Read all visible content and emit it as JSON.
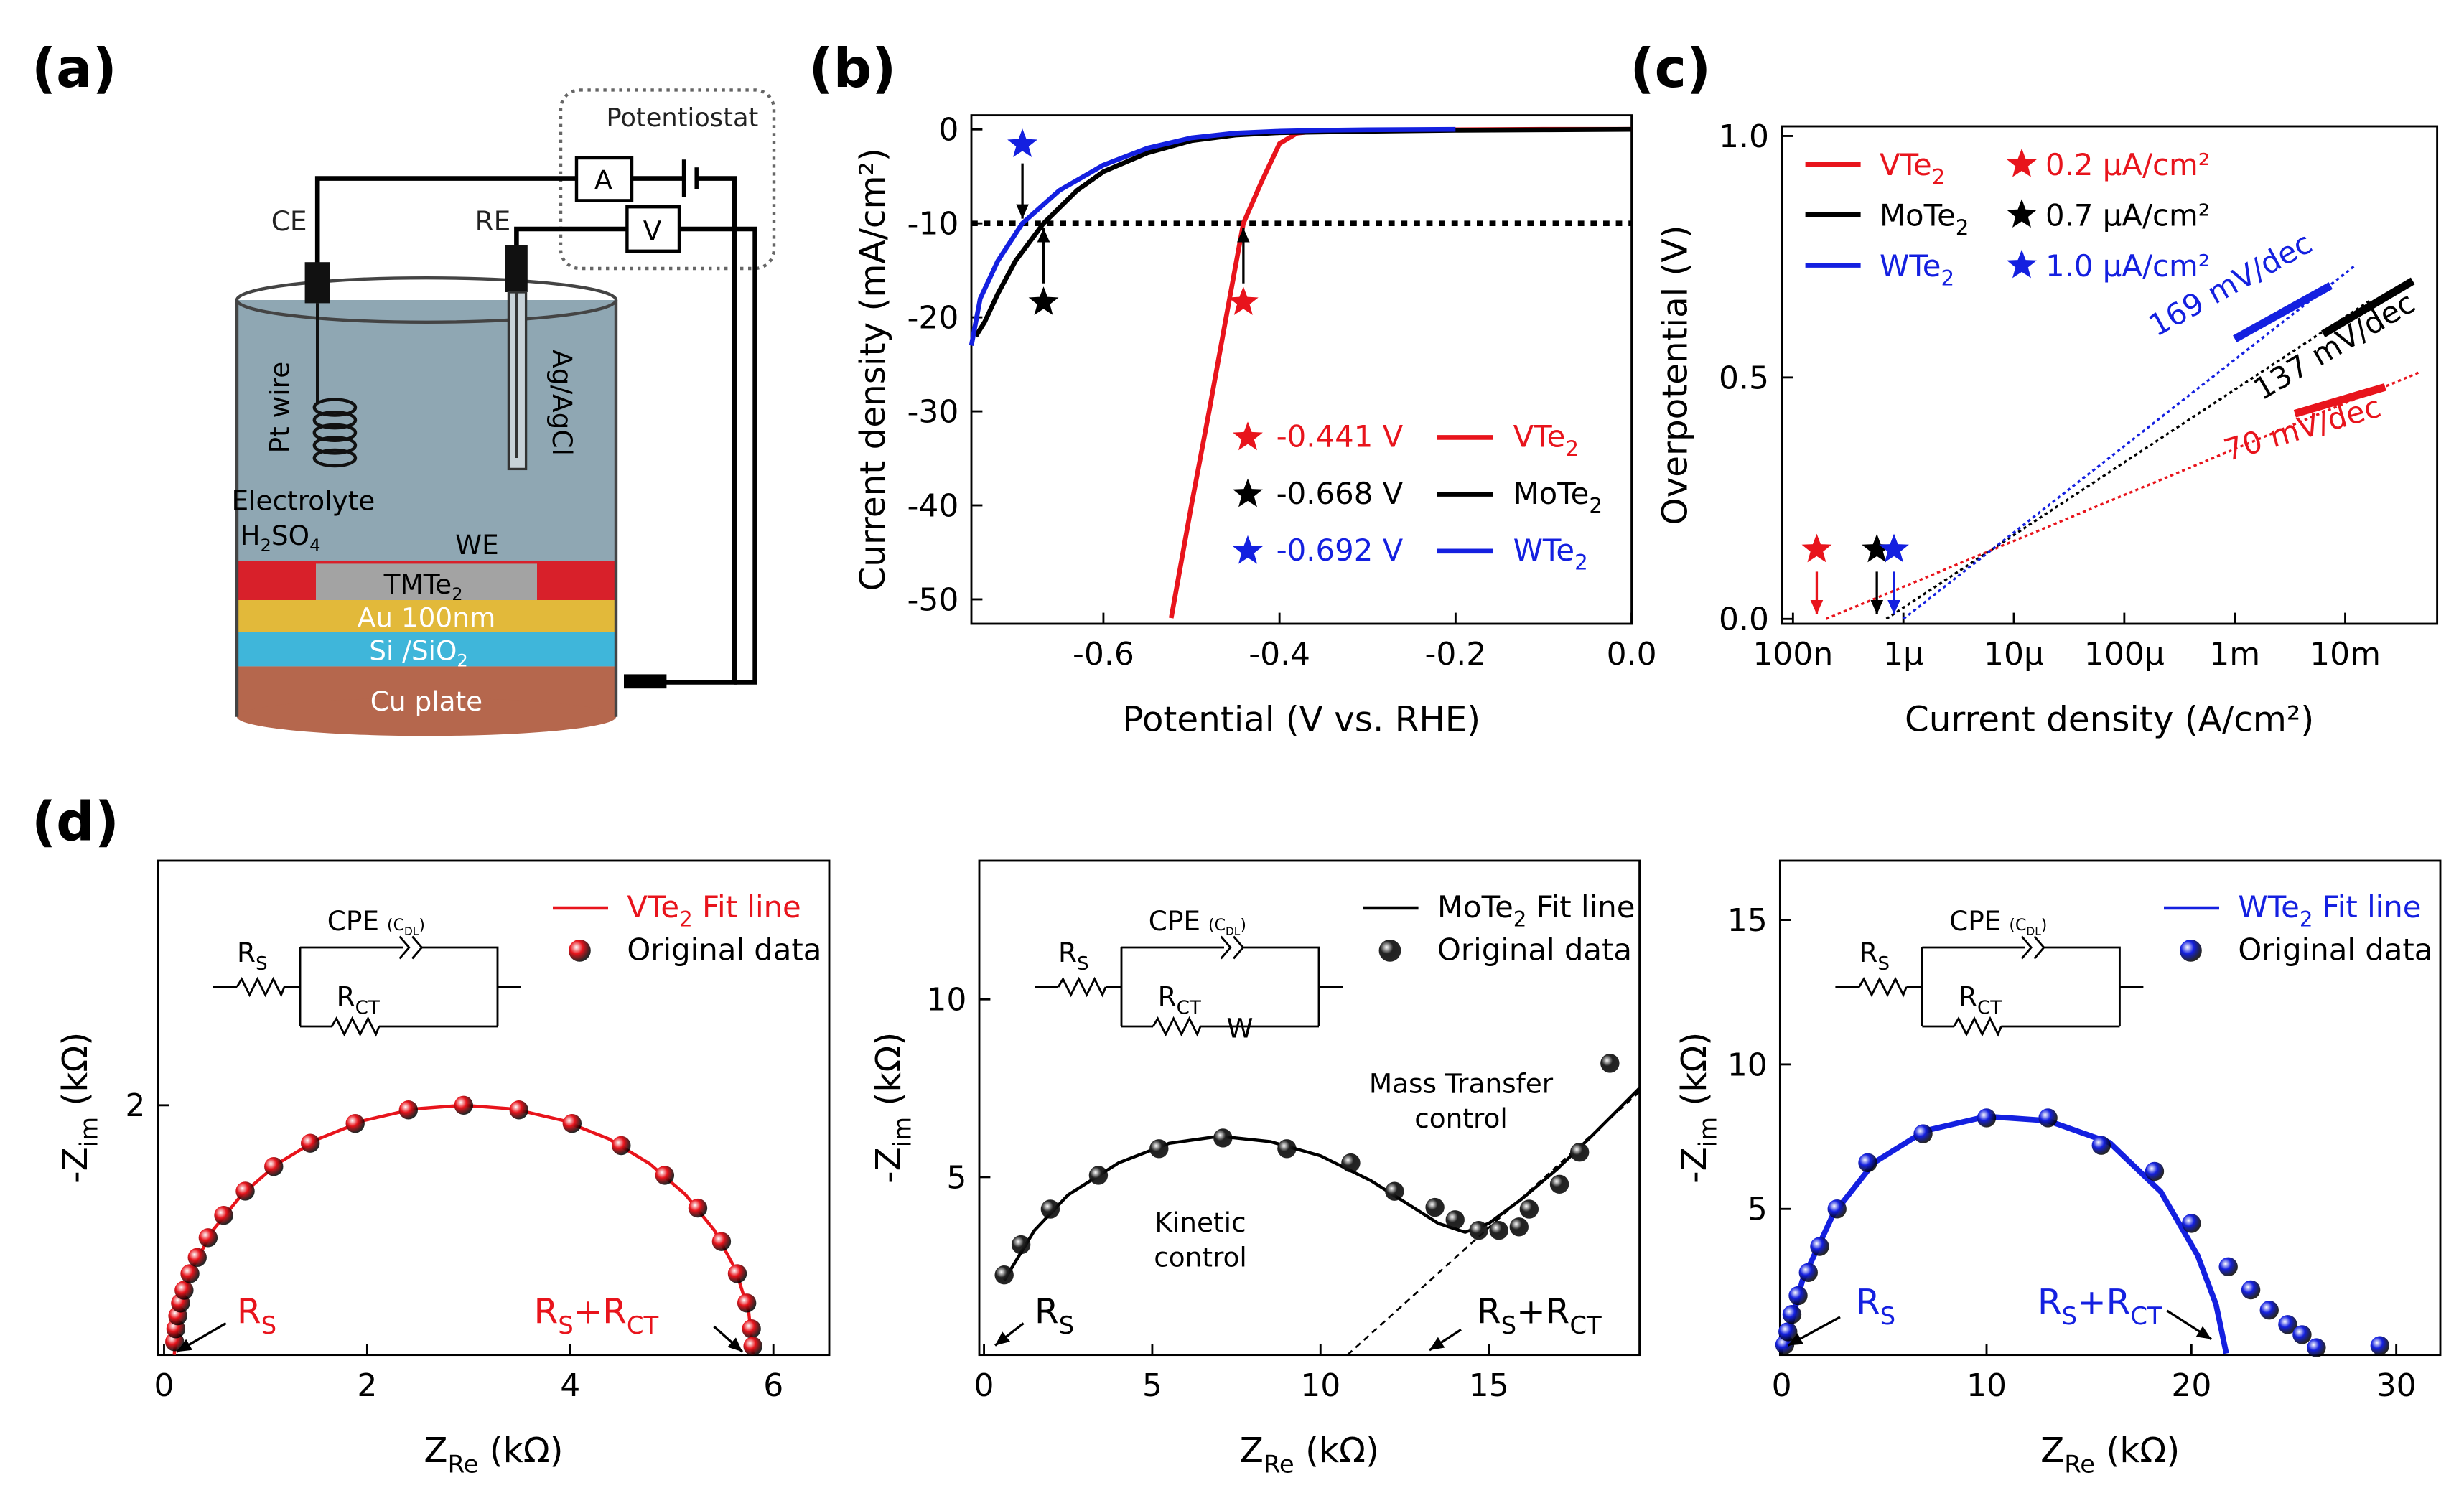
{
  "panel_labels": [
    "(a)",
    "(b)",
    "(c)",
    "(d)"
  ],
  "diagram": {
    "potentiostat": "Potentiostat",
    "ammeter": "A",
    "voltmeter": "V",
    "ce": "CE",
    "re": "RE",
    "pt_wire": "Pt wire",
    "ag_agcl": "Ag/AgCl",
    "electrolyte": "Electrolyte",
    "h2so4": [
      "H",
      "2",
      "SO",
      "4"
    ],
    "we": "WE",
    "tmte2": [
      "TMTe",
      "2"
    ],
    "au": "Au 100nm",
    "si": [
      "Si /SiO",
      "2"
    ],
    "cu": "Cu plate"
  },
  "chart_data": [
    {
      "type": "line",
      "x_label": "Potential (V vs. RHE)",
      "y_label": "Current density (mA/cm²)",
      "xlim": [
        -0.75,
        0
      ],
      "ylim": [
        -52.6,
        1.5
      ],
      "xticks": [
        -0.6,
        -0.4,
        -0.2,
        {
          "value": 0,
          "label": "0.0"
        }
      ],
      "yticks": [
        0,
        -10,
        -20,
        -30,
        -40,
        -50
      ],
      "reference_line": -10,
      "series": [
        {
          "name": [
            "VTe",
            "2"
          ],
          "color": "#e8141c",
          "marker_x": -0.441,
          "marker_label": "-0.441 V",
          "marker_side": "below",
          "x": [
            0,
            -0.1,
            -0.2,
            -0.3,
            -0.36,
            -0.38,
            -0.4,
            -0.42,
            -0.441,
            -0.46,
            -0.48,
            -0.5,
            -0.523
          ],
          "values": [
            0,
            0,
            -0.05,
            -0.1,
            -0.2,
            -0.4,
            -1.5,
            -5.5,
            -10,
            -19.7,
            -30,
            -40,
            -52
          ]
        },
        {
          "name": [
            "MoTe",
            "2"
          ],
          "color": "#000000",
          "marker_x": -0.668,
          "marker_label": "-0.668 V",
          "marker_side": "below",
          "x": [
            0,
            -0.1,
            -0.2,
            -0.3,
            -0.4,
            -0.45,
            -0.5,
            -0.55,
            -0.6,
            -0.63,
            -0.668,
            -0.7,
            -0.72,
            -0.735,
            -0.745
          ],
          "values": [
            0,
            -0.05,
            -0.1,
            -0.2,
            -0.35,
            -0.6,
            -1.2,
            -2.5,
            -4.5,
            -6.5,
            -10,
            -14,
            -17.5,
            -20.5,
            -22
          ]
        },
        {
          "name": [
            "WTe",
            "2"
          ],
          "color": "#1420e0",
          "marker_x": -0.692,
          "marker_label": "-0.692 V",
          "marker_side": "above",
          "x": [
            -0.2,
            -0.3,
            -0.35,
            -0.4,
            -0.45,
            -0.5,
            -0.55,
            -0.6,
            -0.65,
            -0.692,
            -0.72,
            -0.74,
            -0.75
          ],
          "values": [
            0,
            -0.05,
            -0.1,
            -0.2,
            -0.4,
            -0.9,
            -2,
            -3.8,
            -6.5,
            -10,
            -14,
            -18,
            -23
          ]
        }
      ]
    },
    {
      "type": "line",
      "xscale": "log",
      "x_label": "Current density (A/cm²)",
      "y_label": "Overpotential (V)",
      "xlim": [
        7.9e-08,
        0.068
      ],
      "ylim": [
        -0.01,
        1.02
      ],
      "xticks": [
        {
          "value": 1e-07,
          "label": "100n"
        },
        {
          "value": 1e-06,
          "label": "1μ"
        },
        {
          "value": 1e-05,
          "label": "10μ"
        },
        {
          "value": 0.0001,
          "label": "100μ"
        },
        {
          "value": 0.001,
          "label": "1m"
        },
        {
          "value": 0.01,
          "label": "10m"
        }
      ],
      "yticks": [
        {
          "value": 0,
          "label": "0.0"
        },
        0.5,
        {
          "value": 1,
          "label": "1.0"
        }
      ],
      "series": [
        {
          "name": [
            "VTe",
            "2"
          ],
          "color": "#e8141c",
          "exchange_label": "0.2 μA/cm²",
          "slope_label": "70 mV/dec",
          "x": [
            2e-07,
            0.046
          ],
          "values": [
            0,
            0.51
          ],
          "fit_x": [
            0.0035,
            0.023
          ],
          "fit_values": [
            0.425,
            0.48
          ]
        },
        {
          "name": [
            "MoTe",
            "2"
          ],
          "color": "#000000",
          "exchange_label": "0.7 μA/cm²",
          "slope_label": "137 mV/dec",
          "x": [
            7e-07,
            0.017
          ],
          "values": [
            0,
            0.66
          ],
          "fit_x": [
            0.0063,
            0.041
          ],
          "fit_values": [
            0.59,
            0.7
          ]
        },
        {
          "name": [
            "WTe",
            "2"
          ],
          "color": "#1420e0",
          "exchange_label": "1.0 μA/cm²",
          "slope_label": "169 mV/dec",
          "x": [
            1e-06,
            0.012
          ],
          "values": [
            0,
            0.73
          ],
          "fit_x": [
            0.001,
            0.0074
          ],
          "fit_values": [
            0.58,
            0.69
          ]
        }
      ]
    },
    {
      "type": "scatter",
      "x_label": [
        "Z",
        "Re",
        " (kΩ)"
      ],
      "y_label": [
        "-Z",
        "im",
        " (kΩ)"
      ],
      "xlim": [
        -0.06,
        6.55
      ],
      "ylim": [
        0,
        3.96
      ],
      "xticks": [
        0,
        2,
        4,
        6
      ],
      "yticks": [
        2
      ],
      "circuit": {
        "cpe": "CPE",
        "cdl": [
          "(C",
          "DL",
          ")"
        ],
        "rs": [
          "R",
          "S"
        ],
        "rct": [
          "R",
          "CT"
        ]
      },
      "annotations": [
        [
          "R",
          "S"
        ],
        [
          "R",
          "S",
          "+R",
          "CT"
        ]
      ],
      "series": [
        {
          "name": [
            "VTe",
            "2",
            " Fit line"
          ],
          "color": "#e8141c",
          "style": "line",
          "x": [
            0.1,
            0.143,
            0.272,
            0.482,
            0.767,
            1.118,
            1.525,
            1.975,
            2.455,
            2.95,
            3.445,
            3.925,
            4.375,
            4.782,
            5.133,
            5.418,
            5.628,
            5.757,
            5.8
          ],
          "values": [
            0,
            0.347,
            0.684,
            1.0,
            1.286,
            1.532,
            1.732,
            1.879,
            1.97,
            2.0,
            1.97,
            1.879,
            1.732,
            1.532,
            1.286,
            1.0,
            0.684,
            0.347,
            0
          ]
        },
        {
          "name": "Original data",
          "color": "#e8141c",
          "style": "marker",
          "x": [
            0.104,
            0.116,
            0.135,
            0.162,
            0.197,
            0.255,
            0.327,
            0.434,
            0.587,
            0.799,
            1.08,
            1.44,
            1.882,
            2.406,
            2.95,
            3.494,
            4.018,
            4.502,
            4.93,
            5.256,
            5.489,
            5.645,
            5.738,
            5.784,
            5.798
          ],
          "values": [
            0.105,
            0.209,
            0.313,
            0.416,
            0.518,
            0.651,
            0.781,
            0.939,
            1.118,
            1.312,
            1.509,
            1.696,
            1.854,
            1.963,
            2.0,
            1.963,
            1.854,
            1.677,
            1.439,
            1.176,
            0.908,
            0.651,
            0.416,
            0.209,
            0.07
          ]
        }
      ]
    },
    {
      "type": "scatter",
      "x_label": [
        "Z",
        "Re",
        " (kΩ)"
      ],
      "y_label": [
        "-Z",
        "im",
        " (kΩ)"
      ],
      "xlim": [
        -0.14,
        19.48
      ],
      "ylim": [
        0,
        13.9
      ],
      "xticks": [
        0,
        5,
        10,
        15
      ],
      "yticks": [
        5,
        10
      ],
      "circuit": {
        "cpe": "CPE",
        "cdl": [
          "(C",
          "DL",
          ")"
        ],
        "rs": [
          "R",
          "S"
        ],
        "rct": [
          "R",
          "CT"
        ],
        "w": "W"
      },
      "annotations": [
        [
          "R",
          "S"
        ],
        [
          "R",
          "S",
          "+R",
          "CT"
        ]
      ],
      "notes": [
        [
          "Mass Transfer",
          "control"
        ],
        [
          "Kinetic",
          "control"
        ]
      ],
      "dashed_line": {
        "x": [
          10.8,
          19.48
        ],
        "values": [
          0,
          7.4
        ]
      },
      "series": [
        {
          "name": [
            "MoTe",
            "2",
            " Fit line"
          ],
          "color": "#000000",
          "style": "line",
          "x": [
            0.6,
            1.5,
            2.5,
            4,
            5.5,
            7,
            8.5,
            10,
            11.5,
            12.5,
            13.5,
            14.3,
            15,
            16,
            17,
            18,
            19.48
          ],
          "values": [
            2.1,
            3.5,
            4.5,
            5.4,
            5.95,
            6.15,
            6.0,
            5.6,
            4.9,
            4.3,
            3.7,
            3.45,
            3.7,
            4.4,
            5.2,
            6.1,
            7.5
          ]
        },
        {
          "name": "Original data",
          "color": "#222222",
          "style": "marker",
          "x": [
            0.6,
            1.1,
            1.97,
            3.4,
            5.2,
            7.1,
            9.0,
            10.9,
            12.2,
            13.4,
            14.0,
            14.7,
            15.3,
            15.9,
            16.2,
            17.1,
            17.7,
            18.6
          ],
          "values": [
            2.25,
            3.1,
            4.1,
            5.05,
            5.8,
            6.1,
            5.8,
            5.4,
            4.6,
            4.15,
            3.8,
            3.5,
            3.5,
            3.6,
            4.1,
            4.8,
            5.7,
            8.2
          ]
        }
      ]
    },
    {
      "type": "scatter",
      "x_label": [
        "Z",
        "Re",
        " (kΩ)"
      ],
      "y_label": [
        "-Z",
        "im",
        " (kΩ)"
      ],
      "xlim": [
        -0.08,
        32.15
      ],
      "ylim": [
        -0.05,
        17.05
      ],
      "xticks": [
        0,
        10,
        20,
        30
      ],
      "yticks": [
        5,
        10,
        15
      ],
      "circuit": {
        "cpe": "CPE",
        "cdl": [
          "(C",
          "DL",
          ")"
        ],
        "rs": [
          "R",
          "S"
        ],
        "rct": [
          "R",
          "CT"
        ]
      },
      "annotations": [
        [
          "R",
          "S"
        ],
        [
          "R",
          "S",
          "+R",
          "CT"
        ]
      ],
      "series": [
        {
          "name": [
            "WTe",
            "2",
            " Fit line"
          ],
          "color": "#1420e0",
          "style": "line",
          "x": [
            0.15,
            1,
            2.5,
            4.5,
            7,
            10,
            13,
            16,
            18.5,
            20.3,
            21.2,
            21.7
          ],
          "values": [
            0.2,
            2.5,
            4.8,
            6.6,
            7.7,
            8.2,
            8.05,
            7.3,
            5.6,
            3.4,
            1.7,
            0
          ]
        },
        {
          "name": "Original data",
          "color": "#1420e0",
          "style": "marker",
          "x": [
            0.15,
            0.3,
            0.5,
            0.8,
            1.3,
            1.85,
            2.7,
            4.2,
            6.9,
            10.0,
            13.0,
            15.6,
            18.2,
            20.0,
            21.8,
            22.9,
            23.8,
            24.7,
            25.4,
            26.1,
            29.2
          ],
          "values": [
            0.3,
            0.75,
            1.35,
            2.0,
            2.8,
            3.7,
            5.0,
            6.6,
            7.6,
            8.15,
            8.15,
            7.2,
            6.3,
            4.5,
            3.0,
            2.2,
            1.5,
            1.0,
            0.65,
            0.2,
            0.27
          ]
        }
      ]
    }
  ]
}
